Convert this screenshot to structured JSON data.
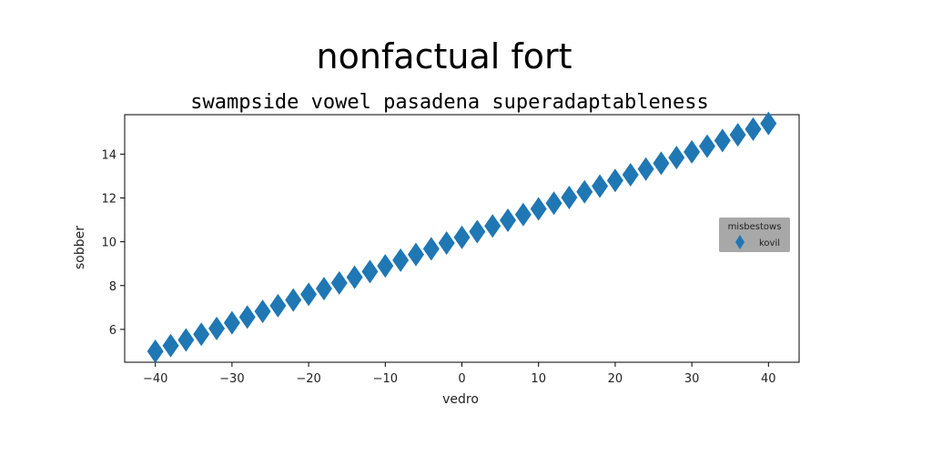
{
  "chart_data": {
    "type": "scatter",
    "title": "nonfactual fort",
    "subtitle": "swampside vowel pasadena superadaptableness",
    "xlabel": "vedro",
    "ylabel": "sobber",
    "xlim": [
      -44,
      44
    ],
    "ylim": [
      4.5,
      15.8
    ],
    "xticks": [
      -40,
      -30,
      -20,
      -10,
      0,
      10,
      20,
      30,
      40
    ],
    "yticks": [
      6,
      8,
      10,
      12,
      14
    ],
    "xtick_labels": [
      "−40",
      "−30",
      "−20",
      "−10",
      "0",
      "10",
      "20",
      "30",
      "40"
    ],
    "ytick_labels": [
      "6",
      "8",
      "10",
      "12",
      "14"
    ],
    "grid": false,
    "legend": {
      "title": "misbestows",
      "placement": "center-right",
      "background": "#999999"
    },
    "series": [
      {
        "name": "kovil",
        "marker": "diamond",
        "color": "#1f77b4",
        "x": [
          -40,
          -38,
          -36,
          -34,
          -32,
          -30,
          -28,
          -26,
          -24,
          -22,
          -20,
          -18,
          -16,
          -14,
          -12,
          -10,
          -8,
          -6,
          -4,
          -2,
          0,
          2,
          4,
          6,
          8,
          10,
          12,
          14,
          16,
          18,
          20,
          22,
          24,
          26,
          28,
          30,
          32,
          34,
          36,
          38,
          40
        ],
        "y": [
          5.0,
          5.26,
          5.52,
          5.78,
          6.04,
          6.3,
          6.56,
          6.82,
          7.08,
          7.34,
          7.6,
          7.86,
          8.12,
          8.38,
          8.64,
          8.9,
          9.16,
          9.42,
          9.68,
          9.94,
          10.2,
          10.46,
          10.72,
          10.98,
          11.24,
          11.5,
          11.76,
          12.02,
          12.28,
          12.54,
          12.8,
          13.06,
          13.32,
          13.58,
          13.84,
          14.1,
          14.36,
          14.62,
          14.88,
          15.14,
          15.4
        ]
      }
    ]
  }
}
